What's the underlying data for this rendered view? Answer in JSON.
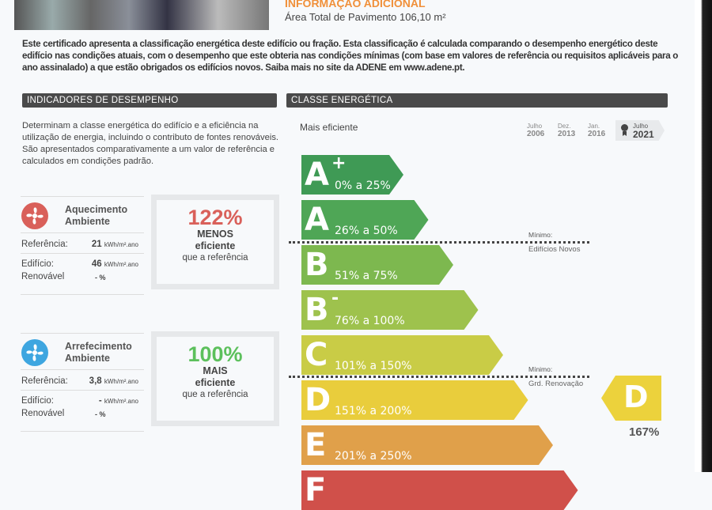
{
  "info": {
    "title": "INFORMAÇÃO ADICIONAL",
    "area": "Área Total de Pavimento 106,10 m²"
  },
  "intro": "Este certificado apresenta a classificação energética deste edifício ou fração. Esta classificação é calculada comparando o desempenho energético deste edifício nas condições atuais, com o desempenho que este obteria nas condições mínimas (com base em valores de referência ou requisitos aplicáveis para o ano assinalado) a que estão obrigados os edifícios novos. Saiba mais no site da ADENE em www.adene.pt.",
  "left": {
    "header": "INDICADORES DE DESEMPENHO",
    "description": "Determinam a classe energética do edifício e a eficiência na utilização de energia, incluindo o contributo de fontes renováveis. São apresentados comparativamente a um valor de referência e calculados em condições padrão.",
    "indicators": [
      {
        "title1": "Aquecimento",
        "title2": "Ambiente",
        "icon": "fan-icon",
        "color": "#d9605a",
        "ref_label": "Referência:",
        "ref_value": "21",
        "bld_label": "Edifício:",
        "bld_value": "46",
        "unit": "kWh/m².ano",
        "ren_label": "Renovável",
        "ren_value": "- %",
        "pct": "122%",
        "cmp": "MENOS",
        "eff": "eficiente",
        "than": "que a referência"
      },
      {
        "title1": "Arrefecimento",
        "title2": "Ambiente",
        "icon": "fan-icon",
        "color": "#3ea6e0",
        "ref_label": "Referência:",
        "ref_value": "3,8",
        "bld_label": "Edifício:",
        "bld_value": "-",
        "unit": "kWh/m².ano",
        "ren_label": "Renovável",
        "ren_value": "- %",
        "pct": "100%",
        "cmp": "MAIS",
        "eff": "eficiente",
        "than": "que a referência",
        "pct_color": "#5cc05c"
      }
    ]
  },
  "right": {
    "header": "CLASSE ENERGÉTICA",
    "top_label": "Mais eficiente",
    "years": [
      {
        "m": "Julho",
        "y": "2006"
      },
      {
        "m": "Dez.",
        "y": "2013"
      },
      {
        "m": "Jan.",
        "y": "2016"
      },
      {
        "m": "Julho",
        "y": "2021",
        "selected": true
      }
    ],
    "classes": [
      {
        "letter": "A",
        "sup": "+",
        "range": "0% a 25%",
        "color": "#3f9a55"
      },
      {
        "letter": "A",
        "sup": "",
        "range": "26% a 50%",
        "color": "#4fa656"
      },
      {
        "letter": "B",
        "sup": "",
        "range": "51% a 75%",
        "color": "#7db84f"
      },
      {
        "letter": "B",
        "sup": "-",
        "range": "76% a 100%",
        "color": "#9ec24d"
      },
      {
        "letter": "C",
        "sup": "",
        "range": "101% a 150%",
        "color": "#c9cc46"
      },
      {
        "letter": "D",
        "sup": "",
        "range": "151% a 200%",
        "color": "#e9cd3c"
      },
      {
        "letter": "E",
        "sup": "",
        "range": "201% a 250%",
        "color": "#e0a04a"
      },
      {
        "letter": "F",
        "sup": "",
        "range": "",
        "color": "#d0504a"
      }
    ],
    "min_new": {
      "label": "Mínimo:",
      "sub": "Edifícios Novos"
    },
    "min_renov": {
      "label": "Mínimo:",
      "sub": "Grd. Renovação"
    },
    "result": {
      "letter": "D",
      "pct": "167%",
      "color": "#ecd23c"
    }
  }
}
